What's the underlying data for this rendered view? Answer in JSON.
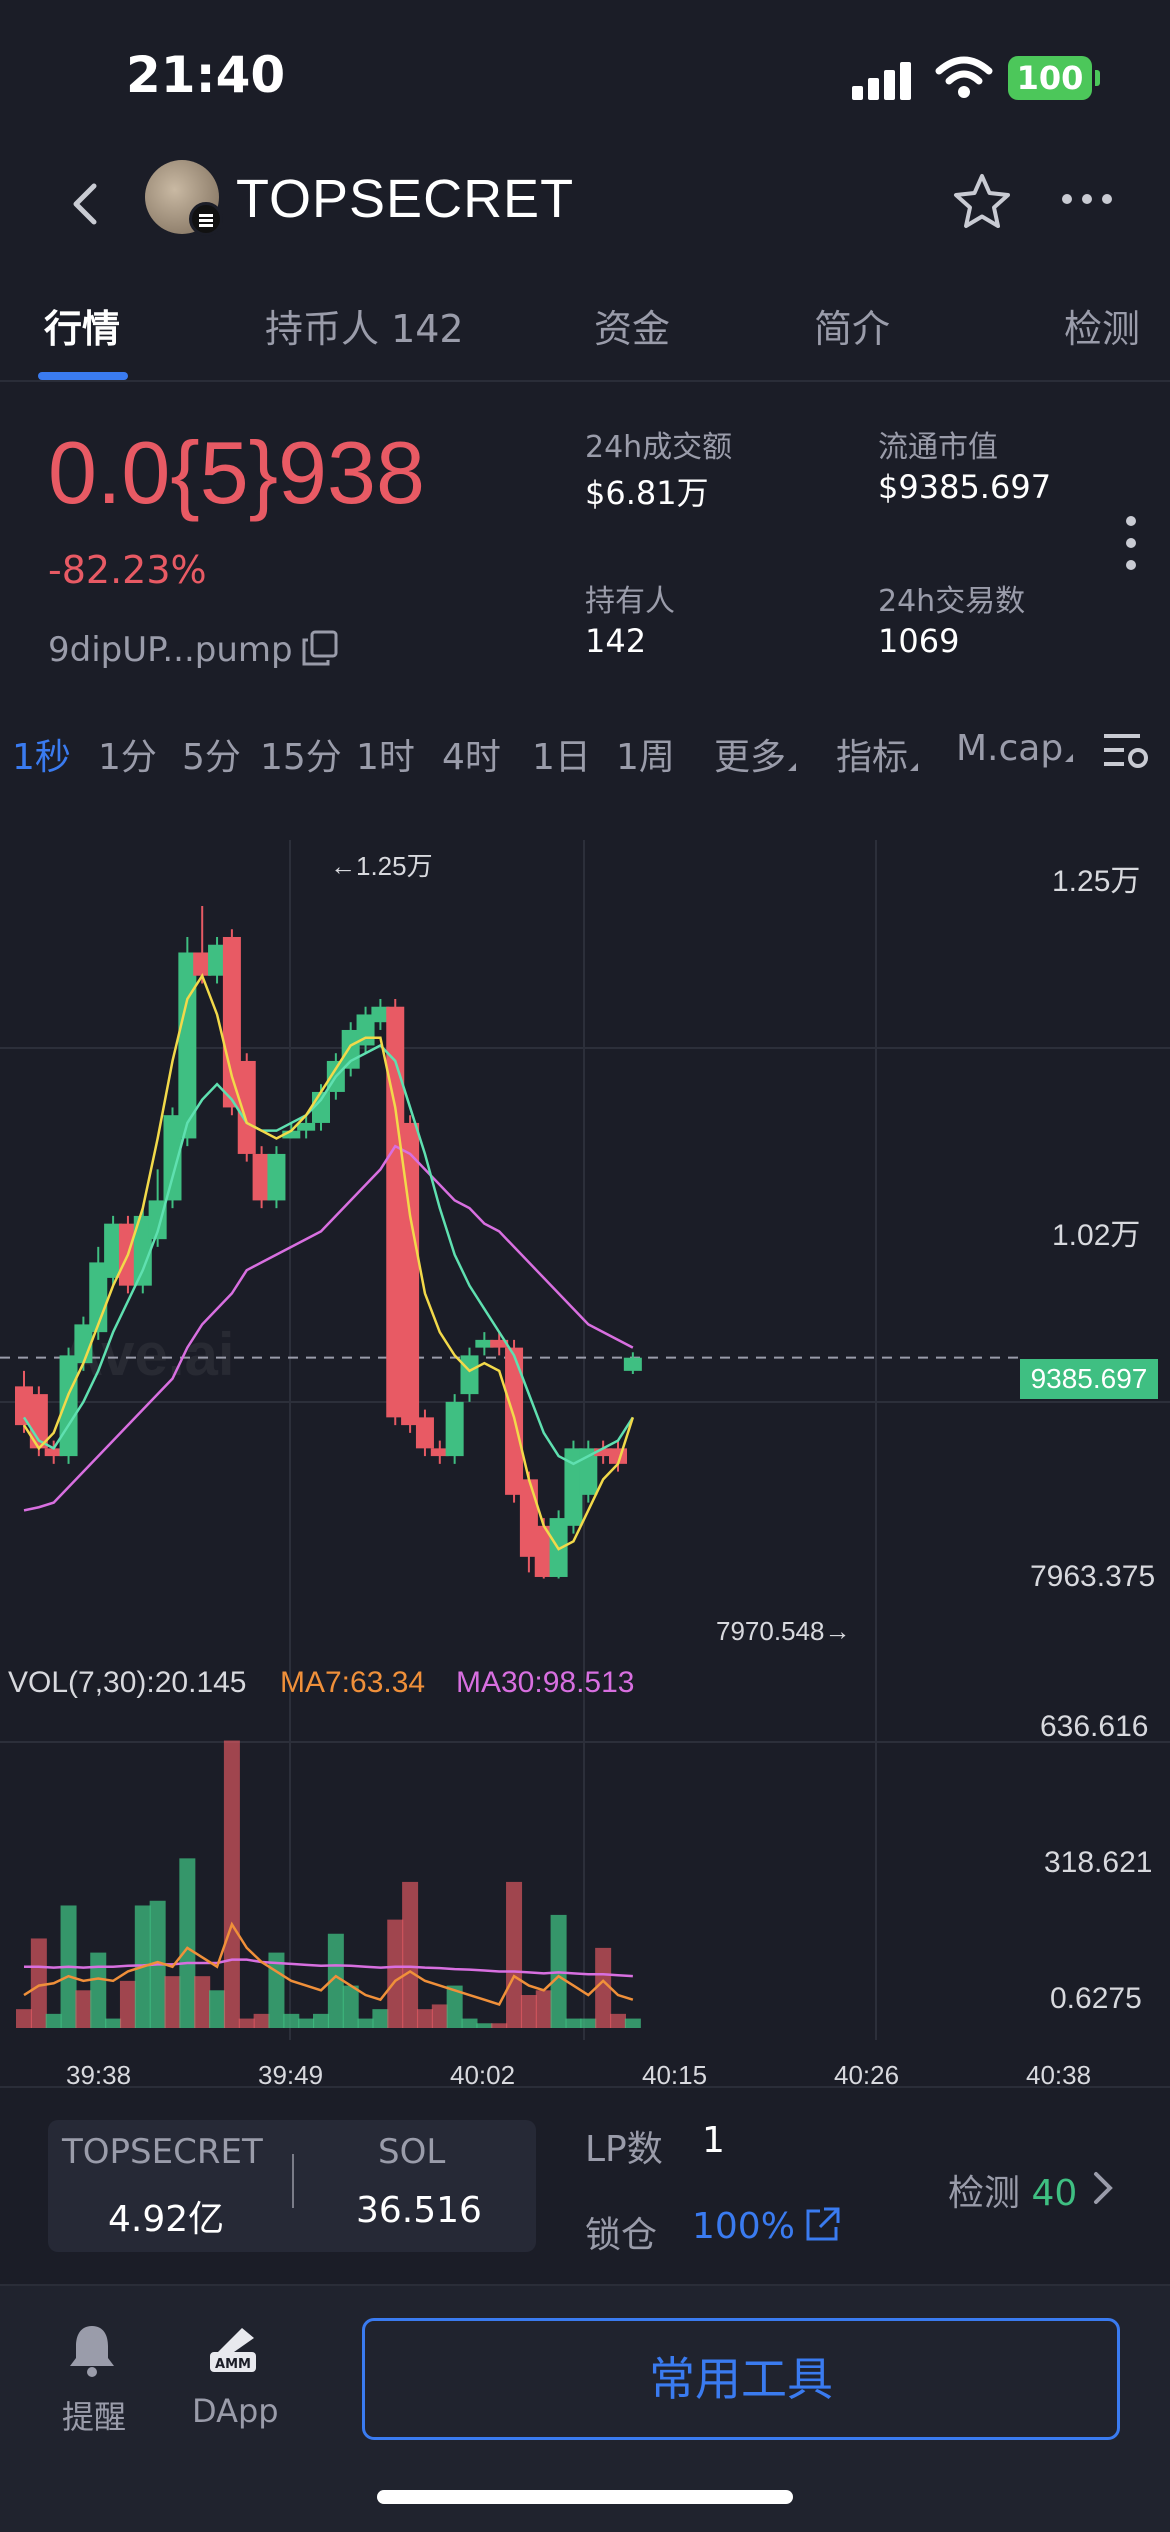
{
  "status_bar": {
    "time": "21:40",
    "battery": "100"
  },
  "header": {
    "title": "TOPSECRET"
  },
  "tabs": [
    {
      "label": "行情"
    },
    {
      "label": "持币人 142"
    },
    {
      "label": "资金"
    },
    {
      "label": "简介"
    },
    {
      "label": "检测"
    }
  ],
  "price": {
    "value": "0.0{5}938",
    "change": "-82.23%",
    "address": "9dipUP...pump"
  },
  "stats": {
    "volume_label": "24h成交额",
    "volume_value": "$6.81万",
    "mcap_label": "流通市值",
    "mcap_value": "$9385.697",
    "holders_label": "持有人",
    "holders_value": "142",
    "txns_label": "24h交易数",
    "txns_value": "1069"
  },
  "intervals": [
    "1秒",
    "1分",
    "5分",
    "15分",
    "1时",
    "4时",
    "1日",
    "1周"
  ],
  "interval_dropdowns": [
    "更多",
    "指标",
    "M.cap"
  ],
  "chart_data": {
    "type": "candlestick",
    "x_ticks": [
      "39:38",
      "39:49",
      "40:02",
      "40:15",
      "40:26",
      "40:38"
    ],
    "y_ticks": [
      "1.25万",
      "1.02万",
      "7963.375"
    ],
    "current_price_tag": "9385.697",
    "high_annotation": "←1.25万",
    "low_annotation": "7970.548→",
    "candles": [
      {
        "o": 9200,
        "c": 8950,
        "h": 9300,
        "l": 8900
      },
      {
        "o": 9150,
        "c": 8800,
        "h": 9200,
        "l": 8750
      },
      {
        "o": 8800,
        "c": 8750,
        "h": 8850,
        "l": 8700
      },
      {
        "o": 8750,
        "c": 9400,
        "h": 9450,
        "l": 8700
      },
      {
        "o": 9350,
        "c": 9600,
        "h": 9650,
        "l": 9300
      },
      {
        "o": 9550,
        "c": 10000,
        "h": 10100,
        "l": 9500
      },
      {
        "o": 9900,
        "c": 10250,
        "h": 10300,
        "l": 9850
      },
      {
        "o": 10250,
        "c": 9850,
        "h": 10300,
        "l": 9800
      },
      {
        "o": 9850,
        "c": 10300,
        "h": 10350,
        "l": 9800
      },
      {
        "o": 10150,
        "c": 10400,
        "h": 10600,
        "l": 10100
      },
      {
        "o": 10400,
        "c": 10950,
        "h": 11000,
        "l": 10350
      },
      {
        "o": 10800,
        "c": 12000,
        "h": 12100,
        "l": 10750
      },
      {
        "o": 12000,
        "c": 11850,
        "h": 12300,
        "l": 11800
      },
      {
        "o": 11850,
        "c": 12050,
        "h": 12100,
        "l": 11800
      },
      {
        "o": 12100,
        "c": 11000,
        "h": 12150,
        "l": 10950
      },
      {
        "o": 11300,
        "c": 10700,
        "h": 11350,
        "l": 10650
      },
      {
        "o": 10700,
        "c": 10400,
        "h": 10750,
        "l": 10350
      },
      {
        "o": 10400,
        "c": 10700,
        "h": 10750,
        "l": 10350
      },
      {
        "o": 10800,
        "c": 10850,
        "h": 10900,
        "l": 10800
      },
      {
        "o": 10850,
        "c": 10900,
        "h": 10950,
        "l": 10800
      },
      {
        "o": 10900,
        "c": 11100,
        "h": 11150,
        "l": 10850
      },
      {
        "o": 11100,
        "c": 11300,
        "h": 11350,
        "l": 11050
      },
      {
        "o": 11250,
        "c": 11500,
        "h": 11550,
        "l": 11200
      },
      {
        "o": 11400,
        "c": 11600,
        "h": 11650,
        "l": 11350
      },
      {
        "o": 11550,
        "c": 11650,
        "h": 11700,
        "l": 11500
      },
      {
        "o": 11650,
        "c": 9000,
        "h": 11700,
        "l": 8950
      },
      {
        "o": 10900,
        "c": 8950,
        "h": 10950,
        "l": 8900
      },
      {
        "o": 9000,
        "c": 8800,
        "h": 9050,
        "l": 8750
      },
      {
        "o": 8800,
        "c": 8750,
        "h": 8850,
        "l": 8700
      },
      {
        "o": 8750,
        "c": 9100,
        "h": 9150,
        "l": 8700
      },
      {
        "o": 9150,
        "c": 9400,
        "h": 9450,
        "l": 9100
      },
      {
        "o": 9450,
        "c": 9500,
        "h": 9550,
        "l": 9400
      },
      {
        "o": 9500,
        "c": 9450,
        "h": 9550,
        "l": 9400
      },
      {
        "o": 9450,
        "c": 8500,
        "h": 9500,
        "l": 8450
      },
      {
        "o": 8600,
        "c": 8100,
        "h": 8650,
        "l": 8000
      },
      {
        "o": 8300,
        "c": 7970,
        "h": 8350,
        "l": 7960
      },
      {
        "o": 7970,
        "c": 8350,
        "h": 8400,
        "l": 7960
      },
      {
        "o": 8300,
        "c": 8800,
        "h": 8850,
        "l": 8250
      },
      {
        "o": 8500,
        "c": 8800,
        "h": 8850,
        "l": 8450
      },
      {
        "o": 8800,
        "c": 8750,
        "h": 8850,
        "l": 8700
      },
      {
        "o": 8800,
        "c": 8700,
        "h": 8850,
        "l": 8650
      },
      {
        "o": 9300,
        "c": 9385,
        "h": 9420,
        "l": 9280
      }
    ],
    "ma_yellow": [
      8950,
      8800,
      8900,
      9150,
      9350,
      9600,
      9850,
      10050,
      10350,
      10800,
      11300,
      11700,
      11850,
      11600,
      11200,
      10900,
      10850,
      10800,
      10850,
      10950,
      11100,
      11250,
      11400,
      11450,
      11450,
      11000,
      10300,
      9800,
      9550,
      9400,
      9300,
      9350,
      9300,
      9000,
      8600,
      8300,
      8150,
      8200,
      8400,
      8600,
      8700,
      9000
    ],
    "ma_green": [
      9000,
      8850,
      8800,
      8950,
      9100,
      9300,
      9550,
      9750,
      9950,
      10200,
      10550,
      10900,
      11050,
      11150,
      11050,
      10900,
      10850,
      10850,
      10900,
      10950,
      11050,
      11200,
      11300,
      11350,
      11400,
      11300,
      11000,
      10700,
      10350,
      10050,
      9850,
      9700,
      9550,
      9400,
      9150,
      8900,
      8750,
      8700,
      8750,
      8800,
      8850,
      9000
    ],
    "ma_purple": [
      8400,
      8420,
      8450,
      8550,
      8650,
      8750,
      8850,
      8950,
      9050,
      9150,
      9250,
      9450,
      9600,
      9700,
      9800,
      9950,
      10000,
      10050,
      10100,
      10150,
      10200,
      10300,
      10400,
      10500,
      10600,
      10750,
      10700,
      10600,
      10500,
      10400,
      10350,
      10250,
      10200,
      10100,
      10000,
      9900,
      9800,
      9700,
      9600,
      9550,
      9500,
      9450
    ],
    "volume": {
      "legend": {
        "main": "VOL(7,30):20.145",
        "ma7": "MA7:63.34",
        "ma30": "MA30:98.513"
      },
      "y_ticks": [
        "636.616",
        "318.621",
        "0.6275"
      ],
      "bars": [
        {
          "v": 40,
          "up": false
        },
        {
          "v": 190,
          "up": false
        },
        {
          "v": 30,
          "up": true
        },
        {
          "v": 260,
          "up": true
        },
        {
          "v": 80,
          "up": false
        },
        {
          "v": 160,
          "up": true
        },
        {
          "v": 20,
          "up": true
        },
        {
          "v": 100,
          "up": false
        },
        {
          "v": 260,
          "up": true
        },
        {
          "v": 270,
          "up": true
        },
        {
          "v": 110,
          "up": false
        },
        {
          "v": 360,
          "up": true
        },
        {
          "v": 110,
          "up": false
        },
        {
          "v": 80,
          "up": true
        },
        {
          "v": 610,
          "up": false
        },
        {
          "v": 20,
          "up": false
        },
        {
          "v": 30,
          "up": false
        },
        {
          "v": 160,
          "up": true
        },
        {
          "v": 30,
          "up": true
        },
        {
          "v": 20,
          "up": true
        },
        {
          "v": 30,
          "up": true
        },
        {
          "v": 200,
          "up": true
        },
        {
          "v": 90,
          "up": true
        },
        {
          "v": 20,
          "up": true
        },
        {
          "v": 40,
          "up": true
        },
        {
          "v": 230,
          "up": false
        },
        {
          "v": 310,
          "up": false
        },
        {
          "v": 40,
          "up": false
        },
        {
          "v": 50,
          "up": false
        },
        {
          "v": 90,
          "up": true
        },
        {
          "v": 20,
          "up": true
        },
        {
          "v": 10,
          "up": true
        },
        {
          "v": 10,
          "up": false
        },
        {
          "v": 310,
          "up": false
        },
        {
          "v": 70,
          "up": false
        },
        {
          "v": 80,
          "up": false
        },
        {
          "v": 240,
          "up": true
        },
        {
          "v": 20,
          "up": true
        },
        {
          "v": 20,
          "up": true
        },
        {
          "v": 170,
          "up": false
        },
        {
          "v": 30,
          "up": false
        },
        {
          "v": 20,
          "up": true
        }
      ],
      "ma7": [
        70,
        90,
        95,
        110,
        100,
        105,
        100,
        120,
        130,
        140,
        130,
        170,
        150,
        130,
        220,
        170,
        140,
        120,
        100,
        90,
        80,
        110,
        90,
        70,
        60,
        100,
        120,
        100,
        90,
        80,
        70,
        60,
        50,
        110,
        90,
        80,
        110,
        90,
        70,
        100,
        70,
        60
      ],
      "ma30": [
        130,
        130,
        128,
        130,
        128,
        130,
        130,
        132,
        133,
        135,
        135,
        138,
        138,
        138,
        145,
        145,
        140,
        138,
        136,
        134,
        132,
        133,
        132,
        130,
        128,
        130,
        130,
        128,
        127,
        125,
        124,
        122,
        120,
        120,
        118,
        116,
        118,
        116,
        114,
        114,
        112,
        110
      ]
    }
  },
  "pair": {
    "token_label": "TOPSECRET",
    "token_value": "4.92亿",
    "quote_label": "SOL",
    "quote_value": "36.516"
  },
  "liquidity": {
    "lp_label": "LP数",
    "lp_value": "1",
    "lock_label": "锁仓",
    "lock_value": "100%"
  },
  "detect": {
    "label": "检测",
    "count": "40"
  },
  "bottom_bar": {
    "alert_label": "提醒",
    "dapp_label": "DApp",
    "tools_button": "常用工具"
  },
  "colors": {
    "up": "#3fbf82",
    "down": "#e85a64",
    "accent": "#3a7bf0",
    "bg": "#1b1d27"
  }
}
